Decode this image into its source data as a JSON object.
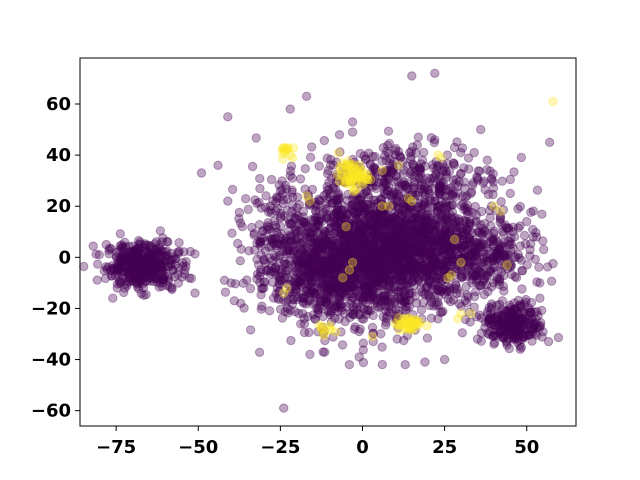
{
  "chart_data": {
    "type": "scatter",
    "title": "",
    "xlabel": "",
    "ylabel": "",
    "xlim": [
      -86,
      65
    ],
    "ylim": [
      -66,
      78
    ],
    "xticks": [
      -75,
      -50,
      -25,
      0,
      25,
      50
    ],
    "yticks": [
      -60,
      -40,
      -20,
      0,
      20,
      40,
      60
    ],
    "xtick_labels": [
      "−75",
      "−50",
      "−25",
      "0",
      "25",
      "50"
    ],
    "ytick_labels": [
      "−60",
      "−40",
      "−20",
      "0",
      "20",
      "40",
      "60"
    ],
    "grid": false,
    "marker_alpha": 0.35,
    "colors": {
      "class_0": "#440154",
      "class_1": "#fde725"
    },
    "series": [
      {
        "color": "#440154",
        "clusters": [
          {
            "cx": -67,
            "cy": -3,
            "sx": 5.5,
            "sy": 4.5,
            "n": 420
          },
          {
            "cx": 5,
            "cy": 2,
            "sx": 14,
            "sy": 13,
            "n": 1700
          },
          {
            "cx": -10,
            "cy": -5,
            "sx": 9,
            "sy": 10,
            "n": 420
          },
          {
            "cx": 20,
            "cy": 5,
            "sx": 9,
            "sy": 9,
            "n": 350
          },
          {
            "cx": 46,
            "cy": -26,
            "sx": 4.5,
            "sy": 4,
            "n": 260
          },
          {
            "cx": 38,
            "cy": 0,
            "sx": 7,
            "sy": 9,
            "n": 220
          },
          {
            "cx": 15,
            "cy": 32,
            "sx": 14,
            "sy": 7,
            "n": 260
          },
          {
            "cx": -25,
            "cy": 5,
            "sx": 6,
            "sy": 14,
            "n": 180
          }
        ],
        "points": [
          [
            -3,
            53
          ],
          [
            -22,
            58
          ],
          [
            -17,
            63
          ],
          [
            -41,
            55
          ],
          [
            -49,
            33
          ],
          [
            -44,
            36
          ],
          [
            -41,
            22
          ],
          [
            -42,
            -9
          ],
          [
            -40,
            -10
          ],
          [
            -16,
            -38
          ],
          [
            -4,
            -42
          ],
          [
            25,
            -40
          ],
          [
            13,
            -42
          ],
          [
            -7,
            48
          ],
          [
            -3,
            49
          ],
          [
            17,
            47
          ],
          [
            22,
            46
          ],
          [
            34,
            41
          ],
          [
            38,
            38
          ],
          [
            50,
            14
          ],
          [
            52,
            8
          ],
          [
            53,
            8
          ],
          [
            54,
            -10
          ],
          [
            54,
            -16
          ],
          [
            -60,
            0
          ],
          [
            -57,
            -3
          ],
          [
            -58,
            -12
          ],
          [
            -76,
            -16
          ],
          [
            -78,
            5
          ]
        ]
      },
      {
        "color": "#fde725",
        "clusters": [
          {
            "cx": -3,
            "cy": 32,
            "sx": 2.2,
            "sy": 2.5,
            "n": 70
          },
          {
            "cx": 14,
            "cy": -26,
            "sx": 2,
            "sy": 1.8,
            "n": 40
          },
          {
            "cx": -24,
            "cy": 42,
            "sx": 1.2,
            "sy": 1.2,
            "n": 14
          },
          {
            "cx": -12,
            "cy": -28,
            "sx": 1.2,
            "sy": 1.2,
            "n": 10
          }
        ],
        "points": [
          [
            58,
            61
          ],
          [
            23,
            40
          ],
          [
            24,
            39
          ],
          [
            27,
            -7
          ],
          [
            26,
            -8
          ],
          [
            29,
            -24
          ],
          [
            30,
            -22
          ],
          [
            3,
            -31
          ],
          [
            -24,
            -14
          ],
          [
            -23,
            -12
          ],
          [
            -3,
            -2
          ],
          [
            -4,
            -5
          ],
          [
            -6,
            -8
          ],
          [
            6,
            20
          ],
          [
            8,
            20
          ],
          [
            14,
            23
          ],
          [
            15,
            22
          ],
          [
            -17,
            24
          ],
          [
            -16,
            22
          ],
          [
            28,
            7
          ],
          [
            30,
            -2
          ],
          [
            44,
            -3
          ],
          [
            42,
            18
          ],
          [
            40,
            20
          ],
          [
            -5,
            12
          ],
          [
            6,
            34
          ],
          [
            11,
            36
          ],
          [
            33,
            -22
          ]
        ]
      },
      {
        "color": "#440154",
        "clusters": [],
        "points": [
          [
            -24,
            -59
          ],
          [
            15,
            71
          ],
          [
            22,
            72
          ],
          [
            36,
            50
          ],
          [
            57,
            45
          ],
          [
            -51,
            -14
          ],
          [
            -39,
            -17
          ],
          [
            -1,
            -39
          ],
          [
            19,
            -41
          ],
          [
            40,
            -34
          ],
          [
            48,
            -36
          ],
          [
            35,
            -32
          ],
          [
            -12,
            -37
          ],
          [
            -30,
            -12
          ],
          [
            -28,
            20
          ],
          [
            -22,
            32
          ],
          [
            28,
            43
          ],
          [
            45,
            25
          ]
        ]
      }
    ]
  }
}
